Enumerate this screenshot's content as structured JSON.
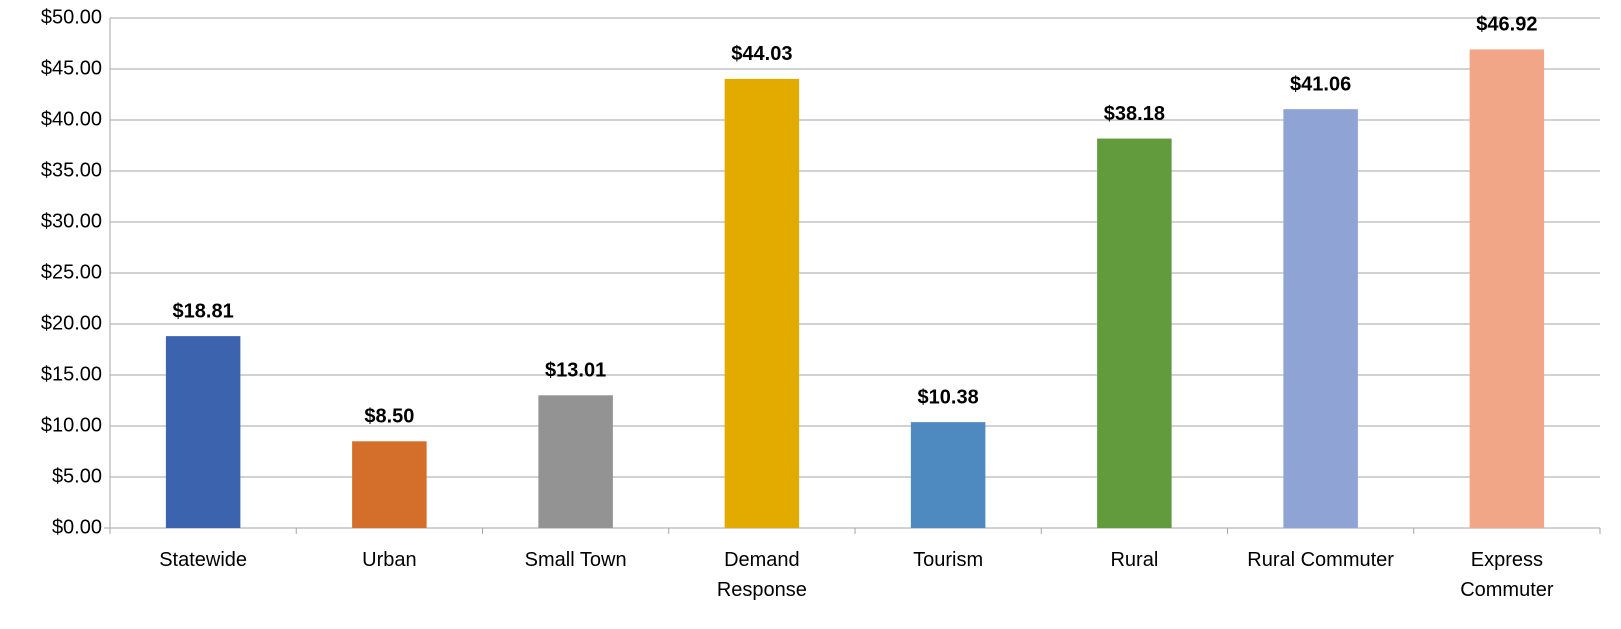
{
  "chart_data": {
    "type": "bar",
    "categories": [
      "Statewide",
      "Urban",
      "Small Town",
      "Demand Response",
      "Tourism",
      "Rural",
      "Rural Commuter",
      "Express Commuter"
    ],
    "values": [
      18.81,
      8.5,
      13.01,
      44.03,
      10.38,
      38.18,
      41.06,
      46.92
    ],
    "value_labels": [
      "$18.81",
      "$8.50",
      "$13.01",
      "$44.03",
      "$10.38",
      "$38.18",
      "$41.06",
      "$46.92"
    ],
    "colors": [
      "#3c64ae",
      "#d46f2b",
      "#939393",
      "#e3aa00",
      "#4e8abf",
      "#629b3d",
      "#8fa3d4",
      "#f1a688"
    ],
    "ylim": [
      0,
      50
    ],
    "yticks": [
      {
        "value": 0,
        "label": "$0.00"
      },
      {
        "value": 5,
        "label": "$5.00"
      },
      {
        "value": 10,
        "label": "$10.00"
      },
      {
        "value": 15,
        "label": "$15.00"
      },
      {
        "value": 20,
        "label": "$20.00"
      },
      {
        "value": 25,
        "label": "$25.00"
      },
      {
        "value": 30,
        "label": "$30.00"
      },
      {
        "value": 35,
        "label": "$35.00"
      },
      {
        "value": 40,
        "label": "$40.00"
      },
      {
        "value": 45,
        "label": "$45.00"
      },
      {
        "value": 50,
        "label": "$50.00"
      }
    ],
    "grid": true
  }
}
